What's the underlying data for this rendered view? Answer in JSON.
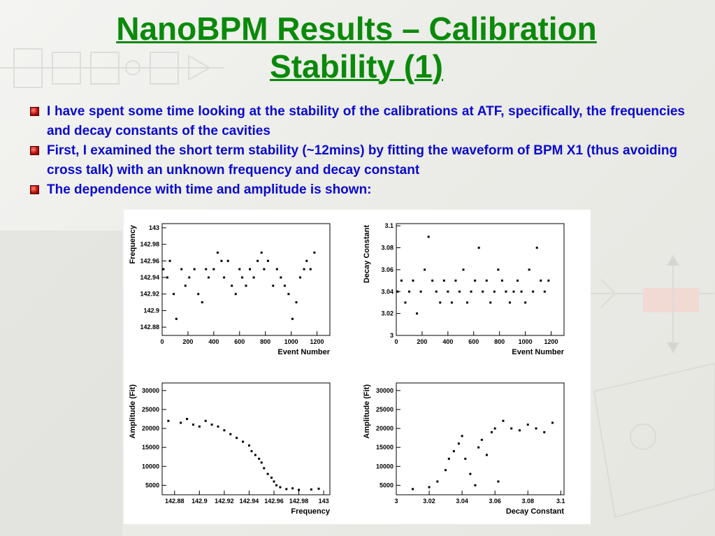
{
  "slide": {
    "title_line1": "NanoBPM Results – Calibration",
    "title_line2": "Stability (1)",
    "bullets": [
      "I have spent some time looking at the stability of the calibrations at ATF, specifically, the frequencies and decay constants of the cavities",
      "First, I examined the short term stability (~12mins) by fitting the waveform of BPM X1 (thus avoiding cross talk) with an unknown frequency and decay constant",
      "The dependence with time and amplitude is shown:"
    ]
  },
  "colors": {
    "title": "#0a8a0a",
    "bullet_text": "#0a0ad0",
    "bullet_marker": "#c01010"
  },
  "chart_data": [
    {
      "type": "scatter",
      "xlabel": "Event Number",
      "ylabel": "Frequency",
      "xlim": [
        0,
        1300
      ],
      "ylim": [
        142.87,
        143.005
      ],
      "xticks": [
        0,
        200,
        400,
        600,
        800,
        1000,
        1200
      ],
      "xticklabels": [
        "0",
        "200",
        "400",
        "600",
        "800",
        "1000",
        "1200"
      ],
      "yticks": [
        142.88,
        142.9,
        142.92,
        142.94,
        142.96,
        142.98,
        143
      ],
      "yticklabels": [
        "142.88",
        "142.9",
        "142.92",
        "142.94",
        "142.96",
        "142.98",
        "143"
      ],
      "points": [
        [
          10,
          142.95
        ],
        [
          40,
          142.94
        ],
        [
          60,
          142.96
        ],
        [
          90,
          142.92
        ],
        [
          110,
          142.89
        ],
        [
          150,
          142.95
        ],
        [
          180,
          142.93
        ],
        [
          210,
          142.94
        ],
        [
          250,
          142.95
        ],
        [
          280,
          142.92
        ],
        [
          310,
          142.91
        ],
        [
          340,
          142.95
        ],
        [
          360,
          142.94
        ],
        [
          400,
          142.95
        ],
        [
          430,
          142.97
        ],
        [
          460,
          142.96
        ],
        [
          480,
          142.94
        ],
        [
          510,
          142.96
        ],
        [
          540,
          142.93
        ],
        [
          570,
          142.92
        ],
        [
          600,
          142.95
        ],
        [
          620,
          142.94
        ],
        [
          650,
          142.93
        ],
        [
          680,
          142.95
        ],
        [
          710,
          142.94
        ],
        [
          740,
          142.96
        ],
        [
          770,
          142.97
        ],
        [
          790,
          142.95
        ],
        [
          820,
          142.96
        ],
        [
          860,
          142.93
        ],
        [
          890,
          142.95
        ],
        [
          920,
          142.94
        ],
        [
          950,
          142.93
        ],
        [
          980,
          142.92
        ],
        [
          1010,
          142.89
        ],
        [
          1040,
          142.91
        ],
        [
          1070,
          142.94
        ],
        [
          1100,
          142.95
        ],
        [
          1120,
          142.96
        ],
        [
          1150,
          142.95
        ],
        [
          1180,
          142.97
        ]
      ]
    },
    {
      "type": "scatter",
      "xlabel": "Event Number",
      "ylabel": "Decay Constant",
      "xlim": [
        0,
        1300
      ],
      "ylim": [
        3.0,
        3.102
      ],
      "xticks": [
        0,
        200,
        400,
        600,
        800,
        1000,
        1200
      ],
      "xticklabels": [
        "0",
        "200",
        "400",
        "600",
        "800",
        "1000",
        "1200"
      ],
      "yticks": [
        3,
        3.02,
        3.04,
        3.06,
        3.08,
        3.1
      ],
      "yticklabels": [
        "3",
        "3.02",
        "3.04",
        "3.06",
        "3.08",
        "3.1"
      ],
      "points": [
        [
          10,
          3.04
        ],
        [
          40,
          3.05
        ],
        [
          70,
          3.03
        ],
        [
          100,
          3.04
        ],
        [
          130,
          3.05
        ],
        [
          160,
          3.02
        ],
        [
          190,
          3.04
        ],
        [
          220,
          3.06
        ],
        [
          250,
          3.09
        ],
        [
          280,
          3.05
        ],
        [
          310,
          3.04
        ],
        [
          340,
          3.03
        ],
        [
          370,
          3.05
        ],
        [
          400,
          3.04
        ],
        [
          430,
          3.03
        ],
        [
          460,
          3.05
        ],
        [
          490,
          3.04
        ],
        [
          520,
          3.06
        ],
        [
          550,
          3.03
        ],
        [
          580,
          3.04
        ],
        [
          610,
          3.05
        ],
        [
          640,
          3.08
        ],
        [
          670,
          3.04
        ],
        [
          700,
          3.05
        ],
        [
          730,
          3.03
        ],
        [
          760,
          3.04
        ],
        [
          790,
          3.06
        ],
        [
          820,
          3.05
        ],
        [
          850,
          3.04
        ],
        [
          880,
          3.03
        ],
        [
          910,
          3.04
        ],
        [
          940,
          3.05
        ],
        [
          970,
          3.04
        ],
        [
          1000,
          3.03
        ],
        [
          1030,
          3.06
        ],
        [
          1060,
          3.04
        ],
        [
          1090,
          3.08
        ],
        [
          1120,
          3.05
        ],
        [
          1150,
          3.04
        ],
        [
          1180,
          3.05
        ]
      ]
    },
    {
      "type": "scatter",
      "xlabel": "Frequency",
      "ylabel": "Amplitude (Fit)",
      "xlim": [
        142.87,
        143.005
      ],
      "ylim": [
        2500,
        32000
      ],
      "xticks": [
        142.88,
        142.9,
        142.92,
        142.94,
        142.96,
        142.98,
        143
      ],
      "xticklabels": [
        "142.88",
        "142.9",
        "142.92",
        "142.94",
        "142.96",
        "142.98",
        "143"
      ],
      "yticks": [
        5000,
        10000,
        15000,
        20000,
        25000,
        30000
      ],
      "yticklabels": [
        "5000",
        "10000",
        "15000",
        "20000",
        "25000",
        "30000"
      ],
      "points": [
        [
          142.875,
          22000
        ],
        [
          142.885,
          21500
        ],
        [
          142.89,
          22500
        ],
        [
          142.895,
          21000
        ],
        [
          142.9,
          20500
        ],
        [
          142.905,
          22000
        ],
        [
          142.91,
          21000
        ],
        [
          142.915,
          20500
        ],
        [
          142.92,
          19500
        ],
        [
          142.925,
          18500
        ],
        [
          142.93,
          17500
        ],
        [
          142.935,
          16500
        ],
        [
          142.94,
          15500
        ],
        [
          142.942,
          14000
        ],
        [
          142.945,
          13000
        ],
        [
          142.948,
          12000
        ],
        [
          142.95,
          11000
        ],
        [
          142.952,
          9500
        ],
        [
          142.955,
          8000
        ],
        [
          142.958,
          7000
        ],
        [
          142.96,
          6000
        ],
        [
          142.962,
          5000
        ],
        [
          142.965,
          4500
        ],
        [
          142.97,
          4000
        ],
        [
          142.975,
          4200
        ],
        [
          142.98,
          3800
        ],
        [
          142.99,
          3900
        ],
        [
          142.996,
          4100
        ]
      ]
    },
    {
      "type": "scatter",
      "xlabel": "Decay Constant",
      "ylabel": "Amplitude (Fit)",
      "xlim": [
        3.0,
        3.102
      ],
      "ylim": [
        2500,
        32000
      ],
      "xticks": [
        3,
        3.02,
        3.04,
        3.06,
        3.08,
        3.1
      ],
      "xticklabels": [
        "3",
        "3.02",
        "3.04",
        "3.06",
        "3.08",
        "3.1"
      ],
      "yticks": [
        5000,
        10000,
        15000,
        20000,
        25000,
        30000
      ],
      "yticklabels": [
        "5000",
        "10000",
        "15000",
        "20000",
        "25000",
        "30000"
      ],
      "points": [
        [
          3.01,
          4000
        ],
        [
          3.02,
          4500
        ],
        [
          3.025,
          6000
        ],
        [
          3.03,
          9000
        ],
        [
          3.032,
          12000
        ],
        [
          3.035,
          14000
        ],
        [
          3.038,
          16000
        ],
        [
          3.04,
          18000
        ],
        [
          3.042,
          12000
        ],
        [
          3.045,
          8000
        ],
        [
          3.048,
          5000
        ],
        [
          3.05,
          15000
        ],
        [
          3.052,
          17000
        ],
        [
          3.055,
          13000
        ],
        [
          3.058,
          19000
        ],
        [
          3.06,
          20000
        ],
        [
          3.062,
          6000
        ],
        [
          3.065,
          22000
        ],
        [
          3.07,
          20000
        ],
        [
          3.075,
          19500
        ],
        [
          3.08,
          21000
        ],
        [
          3.085,
          20000
        ],
        [
          3.09,
          19000
        ],
        [
          3.095,
          21500
        ]
      ]
    }
  ]
}
